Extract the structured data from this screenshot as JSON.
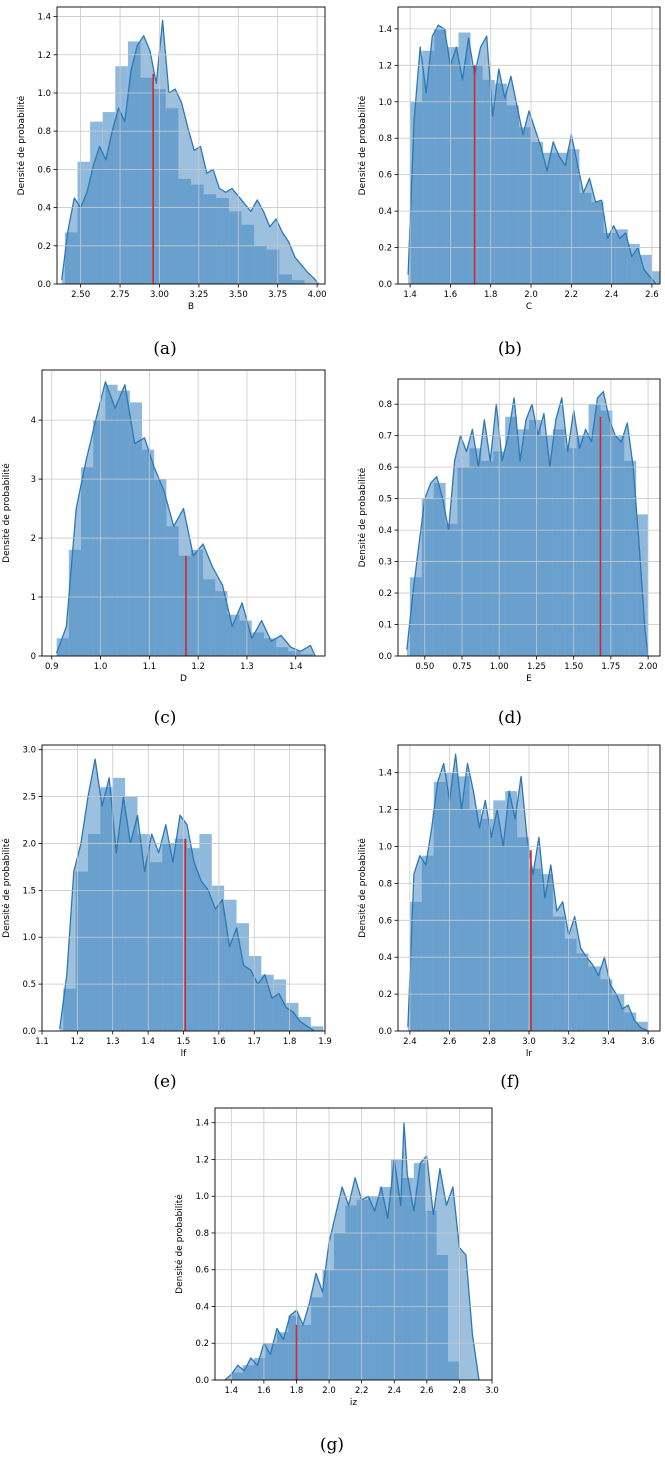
{
  "chart_data": [
    {
      "type": "histogram",
      "caption": "(a)",
      "xlabel": "B",
      "ylabel": "Densité de probabilité",
      "xlim": [
        2.35,
        4.05
      ],
      "ylim": [
        0,
        1.45
      ],
      "xticks": [
        2.5,
        2.75,
        3.0,
        3.25,
        3.5,
        3.75,
        4.0
      ],
      "xtick_labels": [
        "2.50",
        "2.75",
        "3.00",
        "3.25",
        "3.50",
        "3.75",
        "4.00"
      ],
      "yticks": [
        0,
        0.2,
        0.4,
        0.6,
        0.8,
        1.0,
        1.2,
        1.4
      ],
      "ytick_labels": [
        "0.0",
        "0.2",
        "0.4",
        "0.6",
        "0.8",
        "1.0",
        "1.2",
        "1.4"
      ],
      "bin_start": 2.4,
      "bin_width": 0.08,
      "bin_heights": [
        0.27,
        0.64,
        0.85,
        0.9,
        1.14,
        1.27,
        1.08,
        1.02,
        0.92,
        0.55,
        0.52,
        0.47,
        0.45,
        0.38,
        0.31,
        0.2,
        0.18,
        0.05,
        0.02
      ],
      "kde_x": [
        2.38,
        2.42,
        2.46,
        2.5,
        2.54,
        2.58,
        2.62,
        2.66,
        2.7,
        2.74,
        2.78,
        2.82,
        2.86,
        2.9,
        2.94,
        2.98,
        3.02,
        3.06,
        3.1,
        3.14,
        3.18,
        3.22,
        3.26,
        3.3,
        3.34,
        3.38,
        3.42,
        3.46,
        3.5,
        3.54,
        3.58,
        3.62,
        3.66,
        3.7,
        3.74,
        3.78,
        3.82,
        3.86,
        3.9,
        3.94,
        3.98,
        4.01
      ],
      "kde_y": [
        0.02,
        0.28,
        0.45,
        0.4,
        0.48,
        0.62,
        0.72,
        0.65,
        0.8,
        0.92,
        0.85,
        1.12,
        1.25,
        1.3,
        1.22,
        1.05,
        1.38,
        1.0,
        1.02,
        0.95,
        0.82,
        0.7,
        0.72,
        0.58,
        0.6,
        0.5,
        0.48,
        0.5,
        0.46,
        0.42,
        0.38,
        0.44,
        0.38,
        0.3,
        0.34,
        0.27,
        0.22,
        0.14,
        0.1,
        0.06,
        0.03,
        0.0
      ],
      "marker_x": 2.96,
      "marker_y": 1.1
    },
    {
      "type": "histogram",
      "caption": "(b)",
      "xlabel": "C",
      "ylabel": "Densité de probabilité",
      "xlim": [
        1.34,
        2.64
      ],
      "ylim": [
        0,
        1.52
      ],
      "xticks": [
        1.4,
        1.6,
        1.8,
        2.0,
        2.2,
        2.4,
        2.6
      ],
      "xtick_labels": [
        "1.4",
        "1.6",
        "1.8",
        "2.0",
        "2.2",
        "2.4",
        "2.6"
      ],
      "yticks": [
        0,
        0.2,
        0.4,
        0.6,
        0.8,
        1.0,
        1.2,
        1.4
      ],
      "ytick_labels": [
        "0.0",
        "0.2",
        "0.4",
        "0.6",
        "0.8",
        "1.0",
        "1.2",
        "1.4"
      ],
      "bin_start": 1.4,
      "bin_width": 0.06,
      "bin_heights": [
        1.0,
        1.28,
        1.4,
        1.3,
        1.38,
        1.2,
        1.12,
        1.1,
        0.98,
        0.86,
        0.78,
        0.72,
        0.72,
        0.74,
        0.5,
        0.45,
        0.28,
        0.3,
        0.22,
        0.16,
        0.07
      ],
      "kde_x": [
        1.39,
        1.42,
        1.45,
        1.48,
        1.51,
        1.54,
        1.57,
        1.6,
        1.63,
        1.66,
        1.69,
        1.72,
        1.75,
        1.78,
        1.81,
        1.84,
        1.87,
        1.9,
        1.93,
        1.96,
        1.99,
        2.02,
        2.05,
        2.08,
        2.11,
        2.14,
        2.17,
        2.2,
        2.23,
        2.26,
        2.29,
        2.32,
        2.35,
        2.38,
        2.41,
        2.44,
        2.47,
        2.5,
        2.53,
        2.56,
        2.59,
        2.62
      ],
      "kde_y": [
        0.05,
        0.9,
        1.3,
        1.05,
        1.36,
        1.42,
        1.4,
        1.2,
        1.3,
        1.12,
        1.35,
        1.15,
        1.3,
        1.36,
        0.92,
        1.18,
        1.02,
        1.14,
        0.98,
        0.82,
        0.95,
        0.85,
        0.75,
        0.62,
        0.78,
        0.7,
        0.65,
        0.82,
        0.66,
        0.5,
        0.58,
        0.45,
        0.46,
        0.25,
        0.32,
        0.25,
        0.28,
        0.15,
        0.2,
        0.08,
        0.04,
        0.0
      ],
      "marker_x": 1.72,
      "marker_y": 1.2
    },
    {
      "type": "histogram",
      "caption": "(c)",
      "xlabel": "D",
      "ylabel": "Densité de probabilité",
      "xlim": [
        0.88,
        1.46
      ],
      "ylim": [
        0,
        4.85
      ],
      "xticks": [
        0.9,
        1.0,
        1.1,
        1.2,
        1.3,
        1.4
      ],
      "xtick_labels": [
        "0.9",
        "1.0",
        "1.1",
        "1.2",
        "1.3",
        "1.4"
      ],
      "yticks": [
        0,
        1,
        2,
        3,
        4
      ],
      "ytick_labels": [
        "0",
        "1",
        "2",
        "3",
        "4"
      ],
      "bin_start": 0.91,
      "bin_width": 0.025,
      "bin_heights": [
        0.3,
        1.8,
        3.2,
        4.0,
        4.6,
        4.5,
        4.3,
        3.5,
        3.0,
        2.2,
        1.7,
        1.8,
        1.3,
        1.1,
        0.7,
        0.6,
        0.4,
        0.3,
        0.15,
        0.08,
        0.03
      ],
      "kde_x": [
        0.91,
        0.93,
        0.95,
        0.97,
        0.99,
        1.01,
        1.03,
        1.05,
        1.07,
        1.09,
        1.11,
        1.13,
        1.15,
        1.17,
        1.19,
        1.21,
        1.23,
        1.25,
        1.27,
        1.29,
        1.31,
        1.33,
        1.35,
        1.37,
        1.39,
        1.41,
        1.43,
        1.44
      ],
      "kde_y": [
        0.05,
        0.5,
        2.5,
        3.3,
        4.0,
        4.65,
        4.2,
        4.6,
        3.6,
        3.7,
        3.2,
        2.8,
        2.2,
        2.5,
        1.7,
        1.9,
        1.5,
        1.2,
        0.5,
        0.9,
        0.3,
        0.6,
        0.25,
        0.35,
        0.15,
        0.08,
        0.18,
        0.0
      ],
      "marker_x": 1.175,
      "marker_y": 1.7
    },
    {
      "type": "histogram",
      "caption": "(d)",
      "xlabel": "E",
      "ylabel": "Densité de probabilité",
      "xlim": [
        0.32,
        2.08
      ],
      "ylim": [
        0,
        0.88
      ],
      "xticks": [
        0.5,
        0.75,
        1.0,
        1.25,
        1.5,
        1.75,
        2.0
      ],
      "xtick_labels": [
        "0.50",
        "0.75",
        "1.00",
        "1.25",
        "1.50",
        "1.75",
        "2.00"
      ],
      "yticks": [
        0,
        0.1,
        0.2,
        0.3,
        0.4,
        0.5,
        0.6,
        0.7,
        0.8
      ],
      "ytick_labels": [
        "0.0",
        "0.1",
        "0.2",
        "0.3",
        "0.4",
        "0.5",
        "0.6",
        "0.7",
        "0.8"
      ],
      "bin_start": 0.4,
      "bin_width": 0.08,
      "bin_heights": [
        0.25,
        0.5,
        0.55,
        0.42,
        0.6,
        0.66,
        0.62,
        0.65,
        0.76,
        0.72,
        0.75,
        0.7,
        0.72,
        0.66,
        0.7,
        0.8,
        0.78,
        0.7,
        0.62,
        0.45
      ],
      "kde_x": [
        0.38,
        0.42,
        0.46,
        0.5,
        0.54,
        0.58,
        0.62,
        0.66,
        0.7,
        0.74,
        0.78,
        0.82,
        0.86,
        0.9,
        0.94,
        0.98,
        1.02,
        1.06,
        1.1,
        1.14,
        1.18,
        1.22,
        1.26,
        1.3,
        1.34,
        1.38,
        1.42,
        1.46,
        1.5,
        1.54,
        1.58,
        1.62,
        1.66,
        1.7,
        1.74,
        1.78,
        1.82,
        1.86,
        1.9,
        1.94,
        1.98,
        2.0
      ],
      "kde_y": [
        0.02,
        0.2,
        0.35,
        0.5,
        0.55,
        0.57,
        0.5,
        0.4,
        0.62,
        0.7,
        0.65,
        0.72,
        0.6,
        0.75,
        0.62,
        0.8,
        0.62,
        0.7,
        0.82,
        0.62,
        0.75,
        0.8,
        0.7,
        0.77,
        0.6,
        0.75,
        0.82,
        0.65,
        0.78,
        0.66,
        0.72,
        0.68,
        0.82,
        0.84,
        0.75,
        0.7,
        0.68,
        0.74,
        0.6,
        0.35,
        0.08,
        0.0
      ],
      "marker_x": 1.68,
      "marker_y": 0.76
    },
    {
      "type": "histogram",
      "caption": "(e)",
      "xlabel": "lf",
      "ylabel": "Densité de probabilité",
      "xlim": [
        1.1,
        1.9
      ],
      "ylim": [
        0,
        3.05
      ],
      "xticks": [
        1.1,
        1.2,
        1.3,
        1.4,
        1.5,
        1.6,
        1.7,
        1.8,
        1.9
      ],
      "xtick_labels": [
        "1.1",
        "1.2",
        "1.3",
        "1.4",
        "1.5",
        "1.6",
        "1.7",
        "1.8",
        "1.9"
      ],
      "yticks": [
        0,
        0.5,
        1.0,
        1.5,
        2.0,
        2.5,
        3.0
      ],
      "ytick_labels": [
        "0.0",
        "0.5",
        "1.0",
        "1.5",
        "2.0",
        "2.5",
        "3.0"
      ],
      "bin_start": 1.16,
      "bin_width": 0.035,
      "bin_heights": [
        0.45,
        1.7,
        2.1,
        2.6,
        2.7,
        2.5,
        2.1,
        1.8,
        2.0,
        2.05,
        1.95,
        2.1,
        1.55,
        1.4,
        1.15,
        0.8,
        0.6,
        0.55,
        0.3,
        0.15,
        0.05
      ],
      "kde_x": [
        1.15,
        1.17,
        1.19,
        1.21,
        1.23,
        1.25,
        1.27,
        1.29,
        1.31,
        1.33,
        1.35,
        1.37,
        1.39,
        1.41,
        1.43,
        1.45,
        1.47,
        1.49,
        1.51,
        1.53,
        1.55,
        1.57,
        1.59,
        1.61,
        1.63,
        1.65,
        1.67,
        1.69,
        1.71,
        1.73,
        1.75,
        1.77,
        1.79,
        1.81,
        1.83,
        1.85,
        1.87
      ],
      "kde_y": [
        0.02,
        0.6,
        1.7,
        2.0,
        2.5,
        2.9,
        2.4,
        2.7,
        1.9,
        2.5,
        2.0,
        2.3,
        1.7,
        2.1,
        1.9,
        2.2,
        1.8,
        2.3,
        2.2,
        1.8,
        1.6,
        1.5,
        1.3,
        1.4,
        0.9,
        1.1,
        0.7,
        0.65,
        0.5,
        0.6,
        0.35,
        0.4,
        0.25,
        0.2,
        0.1,
        0.05,
        0.0
      ],
      "marker_x": 1.505,
      "marker_y": 2.05
    },
    {
      "type": "histogram",
      "caption": "(f)",
      "xlabel": "lr",
      "ylabel": "Densité de probabilité",
      "xlim": [
        2.34,
        3.66
      ],
      "ylim": [
        0,
        1.55
      ],
      "xticks": [
        2.4,
        2.6,
        2.8,
        3.0,
        3.2,
        3.4,
        3.6
      ],
      "xtick_labels": [
        "2.4",
        "2.6",
        "2.8",
        "3.0",
        "3.2",
        "3.4",
        "3.6"
      ],
      "yticks": [
        0,
        0.2,
        0.4,
        0.6,
        0.8,
        1.0,
        1.2,
        1.4
      ],
      "ytick_labels": [
        "0.0",
        "0.2",
        "0.4",
        "0.6",
        "0.8",
        "1.0",
        "1.2",
        "1.4"
      ],
      "bin_start": 2.4,
      "bin_width": 0.06,
      "bin_heights": [
        0.7,
        0.95,
        1.35,
        1.4,
        1.38,
        1.2,
        1.15,
        1.25,
        1.3,
        1.05,
        0.88,
        0.85,
        0.62,
        0.5,
        0.42,
        0.35,
        0.28,
        0.2,
        0.1,
        0.05
      ],
      "kde_x": [
        2.39,
        2.42,
        2.45,
        2.48,
        2.51,
        2.54,
        2.57,
        2.6,
        2.63,
        2.66,
        2.69,
        2.72,
        2.75,
        2.78,
        2.81,
        2.84,
        2.87,
        2.9,
        2.93,
        2.96,
        2.99,
        3.02,
        3.05,
        3.08,
        3.11,
        3.14,
        3.17,
        3.2,
        3.23,
        3.26,
        3.29,
        3.32,
        3.35,
        3.38,
        3.41,
        3.44,
        3.47,
        3.5,
        3.53,
        3.56,
        3.6
      ],
      "kde_y": [
        0.02,
        0.85,
        0.95,
        0.9,
        1.1,
        1.35,
        1.45,
        1.25,
        1.5,
        1.2,
        1.45,
        1.3,
        1.1,
        1.25,
        1.05,
        1.2,
        1.0,
        1.3,
        1.15,
        1.38,
        1.05,
        0.85,
        1.05,
        0.72,
        0.9,
        0.65,
        0.7,
        0.52,
        0.62,
        0.45,
        0.4,
        0.36,
        0.3,
        0.4,
        0.25,
        0.2,
        0.12,
        0.14,
        0.06,
        0.02,
        0.0
      ],
      "marker_x": 3.01,
      "marker_y": 0.98
    },
    {
      "type": "histogram",
      "caption": "(g)",
      "xlabel": "iz",
      "ylabel": "Densité de probabilité",
      "xlim": [
        1.3,
        3.0
      ],
      "ylim": [
        0,
        1.48
      ],
      "xticks": [
        1.4,
        1.6,
        1.8,
        2.0,
        2.2,
        2.4,
        2.6,
        2.8,
        3.0
      ],
      "xtick_labels": [
        "1.4",
        "1.6",
        "1.8",
        "2.0",
        "2.2",
        "2.4",
        "2.6",
        "2.8",
        "3.0"
      ],
      "yticks": [
        0,
        0.2,
        0.4,
        0.6,
        0.8,
        1.0,
        1.2,
        1.4
      ],
      "ytick_labels": [
        "0.0",
        "0.2",
        "0.4",
        "0.6",
        "0.8",
        "1.0",
        "1.2",
        "1.4"
      ],
      "bin_start": 1.4,
      "bin_width": 0.07,
      "bin_heights": [
        0.04,
        0.08,
        0.12,
        0.2,
        0.26,
        0.35,
        0.3,
        0.45,
        0.6,
        0.8,
        0.95,
        0.98,
        1.0,
        1.05,
        1.2,
        1.1,
        1.18,
        0.92,
        0.68,
        0.1
      ],
      "kde_x": [
        1.36,
        1.4,
        1.44,
        1.48,
        1.52,
        1.56,
        1.6,
        1.64,
        1.68,
        1.72,
        1.76,
        1.8,
        1.84,
        1.88,
        1.92,
        1.96,
        2.0,
        2.04,
        2.08,
        2.12,
        2.16,
        2.2,
        2.24,
        2.28,
        2.32,
        2.36,
        2.4,
        2.44,
        2.46,
        2.48,
        2.52,
        2.56,
        2.6,
        2.64,
        2.68,
        2.72,
        2.76,
        2.8,
        2.84,
        2.88,
        2.92
      ],
      "kde_y": [
        0.0,
        0.03,
        0.08,
        0.05,
        0.12,
        0.08,
        0.2,
        0.14,
        0.28,
        0.22,
        0.35,
        0.38,
        0.3,
        0.42,
        0.58,
        0.48,
        0.75,
        0.9,
        1.05,
        0.95,
        1.1,
        0.98,
        1.0,
        0.92,
        1.05,
        0.88,
        1.2,
        0.95,
        1.4,
        1.12,
        0.92,
        1.18,
        1.22,
        0.9,
        1.15,
        0.95,
        1.05,
        0.72,
        0.68,
        0.25,
        0.0
      ],
      "marker_x": 1.8,
      "marker_y": 0.3
    }
  ]
}
